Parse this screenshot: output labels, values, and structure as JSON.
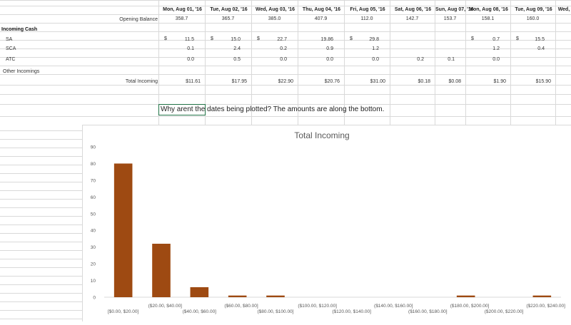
{
  "sheet": {
    "opening_balance_label": "Opening Balance",
    "dates": [
      "Mon, Aug 01, '16",
      "Tue, Aug 02, '16",
      "Wed, Aug 03, '16",
      "Thu, Aug 04, '16",
      "Fri, Aug 05, '16",
      "Sat, Aug 06, '16",
      "Sun, Aug 07, '16",
      "Mon, Aug 08, '16",
      "Tue, Aug 09, '16",
      "Wed,"
    ],
    "opening_balances": [
      "358.7",
      "365.7",
      "385.0",
      "407.9",
      "112.0",
      "142.7",
      "153.7",
      "158.1",
      "160.0"
    ],
    "incoming_cash_label": "Incoming Cash",
    "rows": [
      {
        "label": "SA",
        "values": [
          "11.5",
          "15.0",
          "22.7",
          "19.86",
          "29.8",
          "",
          "",
          "0.7",
          "15.5"
        ]
      },
      {
        "label": "SCA",
        "values": [
          "0.1",
          "2.4",
          "0.2",
          "0.9",
          "1.2",
          "",
          "",
          "1.2",
          "0.4"
        ]
      },
      {
        "label": "ATC",
        "values": [
          "0.0",
          "0.5",
          "0.0",
          "0.0",
          "0.0",
          "0.2",
          "0.1",
          "0.0",
          ""
        ]
      }
    ],
    "other_incomings_label": "Other Incomings",
    "total_incoming_label": "Total Incoming",
    "totals": [
      "$11.61",
      "$17.95",
      "$22.90",
      "$20.76",
      "$31.00",
      "$0.18",
      "$0.08",
      "$1.90",
      "$15.90"
    ],
    "dollar_sign": "$",
    "comment": "Why arent the dates being plotted?  The amounts are along the bottom."
  },
  "chart_data": {
    "type": "bar",
    "title": "Total Incoming",
    "categories": [
      "[$0.00, $20.00]",
      "($20.00, $40.00]",
      "($40.00, $60.00]",
      "($60.00, $80.00]",
      "($80.00, $100.00]",
      "($100.00, $120.00]",
      "($120.00, $140.00]",
      "($140.00, $160.00]",
      "($160.00, $180.00]",
      "($180.00, $200.00]",
      "($200.00, $220.00]",
      "($220.00, $240.00]"
    ],
    "values": [
      80,
      32,
      6,
      1,
      1,
      0,
      0,
      0,
      0,
      1,
      0,
      1
    ],
    "ylim": [
      0,
      90
    ],
    "yticks": [
      "0",
      "10",
      "20",
      "30",
      "40",
      "50",
      "60",
      "70",
      "80",
      "90"
    ],
    "bar_color": "#9e4a12",
    "grid": false
  }
}
